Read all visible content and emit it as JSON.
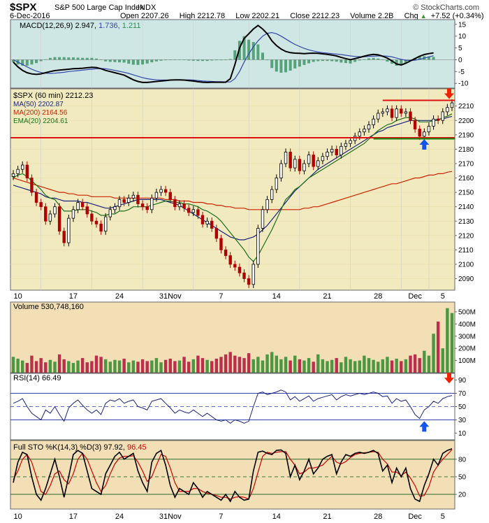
{
  "header": {
    "symbol": "$SPX",
    "name": "S&P 500 Large Cap Index",
    "exchange": "INDX",
    "watermark": "© StockCharts.com",
    "date": "6-Dec-2016",
    "open_label": "Open",
    "open": "2207.26",
    "high_label": "High",
    "high": "2212.78",
    "low_label": "Low",
    "low": "2202.21",
    "close_label": "Close",
    "close": "2212.23",
    "volume_label": "Volume",
    "volume": "2.2B",
    "chg_label": "Chg",
    "chg": "+7.52 (+0.34%)",
    "chg_icon": "up-triangle-icon"
  },
  "colors": {
    "macd_bg": "#cfe7e4",
    "price_bg": "#f2eabf",
    "volume_bg": "#f2dfb6",
    "rsi_bg": "#ffffff",
    "sto_bg": "#f2dfb6",
    "ma50": "#1a237e",
    "ma200": "#cc2200",
    "ema20": "#1b6e1b",
    "resistance": "#dd1111",
    "support": "#118811",
    "up_arrow": "#1155ee",
    "down_arrow": "#ee2200"
  },
  "chart_data": [
    {
      "type": "line",
      "panel": "macd",
      "legend": "MACD(12,26,9) 2.947, 1.736, 1.211",
      "legend_parts": {
        "label": "MACD(12,26,9)",
        "macd": "2.947",
        "signal": "1.736",
        "hist": "1.211"
      },
      "y_ticks": [
        "15",
        "10",
        "5",
        "0",
        "-5",
        "-10"
      ],
      "ylim": [
        -12,
        17
      ],
      "macd": [
        -1,
        -3,
        -4.5,
        -5.5,
        -6,
        -6.2,
        -6,
        -5.5,
        -5,
        -4.6,
        -4.4,
        -4.2,
        -4,
        -3.8,
        -3.7,
        -3.6,
        -3.4,
        -3.2,
        -3.3,
        -3.8,
        -4.5,
        -5,
        -5.5,
        -6,
        -6.5,
        -7.5,
        -8.5,
        -9.2,
        -9.6,
        -9.6,
        -9.4,
        -9.2,
        -9,
        -8.8,
        -8.6,
        -8.5,
        -8.5,
        -8.6,
        -8.8,
        -9,
        -9.3,
        -9.5,
        -9.6,
        -9.5,
        -9.5,
        -9.5,
        -9.5,
        -8,
        -2,
        5,
        9,
        11,
        13,
        14.5,
        13,
        11,
        8,
        6,
        4.5,
        3.5,
        3,
        2.8,
        2.7,
        2.6,
        2.7,
        2.8,
        2.7,
        2.5,
        2.3,
        2,
        1.6,
        1,
        0.5,
        0,
        0.5,
        1,
        1.5,
        2,
        2.3,
        2.1,
        1.5,
        0.7,
        -0.5,
        -1.8,
        -2.2,
        -1.5,
        -0.5,
        0.5,
        1.5,
        2.2,
        2.6,
        2.9
      ],
      "signal": [
        0,
        -1,
        -2,
        -3,
        -4,
        -4.8,
        -5.4,
        -5.7,
        -5.8,
        -5.7,
        -5.5,
        -5.3,
        -5,
        -4.8,
        -4.6,
        -4.4,
        -4.2,
        -4,
        -3.8,
        -3.7,
        -3.8,
        -4.1,
        -4.5,
        -4.9,
        -5.3,
        -5.8,
        -6.4,
        -7,
        -7.6,
        -8,
        -8.3,
        -8.5,
        -8.6,
        -8.6,
        -8.6,
        -8.5,
        -8.5,
        -8.5,
        -8.5,
        -8.6,
        -8.8,
        -9,
        -9.1,
        -9.2,
        -9.3,
        -9.3,
        -9.4,
        -9.4,
        -8,
        -5,
        -1,
        2.5,
        5.5,
        8,
        10,
        11.2,
        11.5,
        11,
        10,
        8.8,
        7.6,
        6.5,
        5.6,
        4.8,
        4.2,
        3.7,
        3.3,
        3,
        2.8,
        2.6,
        2.4,
        2.2,
        1.9,
        1.6,
        1.4,
        1.3,
        1.3,
        1.4,
        1.5,
        1.6,
        1.6,
        1.5,
        1.2,
        0.7,
        0.2,
        -0.2,
        -0.3,
        -0.2,
        0.2,
        0.7,
        1.2,
        1.7
      ],
      "histogram": [
        -1,
        -2,
        -2.5,
        -2.5,
        -2,
        -1.4,
        -0.6,
        0.2,
        0.8,
        1.1,
        1.1,
        1.1,
        1,
        1,
        0.9,
        0.8,
        0.8,
        0.8,
        0.5,
        -0.1,
        -0.7,
        -0.9,
        -1,
        -1.1,
        -1.2,
        -1.7,
        -2.1,
        -2.2,
        -2,
        -1.6,
        -1.1,
        -0.7,
        -0.4,
        -0.2,
        0,
        0,
        0,
        -0.1,
        -0.3,
        -0.4,
        -0.5,
        -0.5,
        -0.5,
        -0.3,
        -0.2,
        -0.2,
        -0.1,
        0.3,
        4,
        8,
        10,
        8.5,
        7.5,
        6.5,
        3,
        -0.2,
        -3.5,
        -5,
        -5.5,
        -5.3,
        -4.6,
        -3.7,
        -2.9,
        -2.2,
        -1.5,
        -0.9,
        -0.6,
        -0.5,
        -0.5,
        -0.6,
        -0.8,
        -1.2,
        -1.4,
        -1.6,
        -0.9,
        -0.3,
        0.2,
        0.6,
        0.8,
        0.5,
        -0.1,
        -0.8,
        -1.7,
        -2.5,
        -2.4,
        -1.3,
        -0.2,
        0.7,
        1.3,
        1.5,
        1.4,
        1.2
      ]
    },
    {
      "type": "candlestick",
      "panel": "price",
      "legend": [
        {
          "text": "$SPX (60 min) 2212.23",
          "color": "#000000"
        },
        {
          "text": "MA(50) 2202.87",
          "color": "#1a237e"
        },
        {
          "text": "MA(200) 2164.56",
          "color": "#cc2200"
        },
        {
          "text": "EMA(20) 2204.61",
          "color": "#1b6e1b"
        }
      ],
      "y_ticks": [
        "2210",
        "2200",
        "2190",
        "2180",
        "2170",
        "2160",
        "2150",
        "2140",
        "2130",
        "2120",
        "2110",
        "2100",
        "2090"
      ],
      "ylim": [
        2082,
        2222
      ],
      "close": [
        2163,
        2166,
        2169,
        2160,
        2150,
        2143,
        2140,
        2130,
        2135,
        2140,
        2123,
        2115,
        2132,
        2138,
        2143,
        2140,
        2135,
        2130,
        2128,
        2123,
        2133,
        2138,
        2140,
        2145,
        2143,
        2146,
        2148,
        2142,
        2140,
        2138,
        2146,
        2150,
        2152,
        2150,
        2145,
        2140,
        2142,
        2139,
        2136,
        2138,
        2134,
        2128,
        2130,
        2125,
        2118,
        2110,
        2106,
        2100,
        2098,
        2094,
        2090,
        2086,
        2100,
        2125,
        2138,
        2145,
        2152,
        2160,
        2170,
        2178,
        2167,
        2173,
        2165,
        2170,
        2176,
        2168,
        2172,
        2175,
        2178,
        2180,
        2176,
        2182,
        2184,
        2186,
        2189,
        2192,
        2194,
        2197,
        2201,
        2205,
        2206,
        2208,
        2202,
        2208,
        2205,
        2206,
        2200,
        2194,
        2189,
        2192,
        2196,
        2201,
        2200,
        2206,
        2209,
        2212.23
      ],
      "ma50": [
        2155,
        2154,
        2153,
        2152,
        2151,
        2150,
        2149,
        2147,
        2146,
        2146,
        2145,
        2144,
        2144,
        2144,
        2144,
        2143,
        2143,
        2142,
        2141,
        2140,
        2139,
        2139,
        2140,
        2141,
        2142,
        2143,
        2144,
        2145,
        2145,
        2145,
        2145,
        2145,
        2145,
        2144,
        2143,
        2142,
        2141,
        2139,
        2137,
        2135,
        2133,
        2131,
        2129,
        2127,
        2125,
        2123,
        2121,
        2119,
        2118,
        2117,
        2117,
        2118,
        2119,
        2121,
        2124,
        2127,
        2131,
        2135,
        2139,
        2143,
        2147,
        2151,
        2154,
        2157,
        2160,
        2163,
        2166,
        2168,
        2170,
        2172,
        2174,
        2176,
        2178,
        2180,
        2182,
        2184,
        2186,
        2188,
        2190,
        2192,
        2193,
        2195,
        2196,
        2197,
        2198,
        2199,
        2200,
        2200,
        2200,
        2200,
        2200,
        2200,
        2201,
        2201,
        2202,
        2202.87
      ],
      "ma200": [
        2160,
        2159,
        2158,
        2157,
        2156,
        2155,
        2154,
        2153,
        2152,
        2151,
        2150,
        2150,
        2149,
        2149,
        2148,
        2148,
        2148,
        2147,
        2147,
        2147,
        2147,
        2147,
        2146,
        2146,
        2146,
        2146,
        2146,
        2146,
        2146,
        2146,
        2146,
        2146,
        2146,
        2145,
        2145,
        2145,
        2144,
        2144,
        2144,
        2143,
        2143,
        2143,
        2142,
        2142,
        2141,
        2141,
        2140,
        2140,
        2139,
        2139,
        2139,
        2138,
        2138,
        2138,
        2138,
        2138,
        2138,
        2138,
        2138,
        2138,
        2138,
        2138,
        2138,
        2139,
        2139,
        2140,
        2140,
        2141,
        2142,
        2143,
        2144,
        2145,
        2146,
        2147,
        2148,
        2149,
        2150,
        2151,
        2152,
        2153,
        2154,
        2155,
        2156,
        2156,
        2157,
        2158,
        2159,
        2160,
        2160,
        2161,
        2162,
        2162,
        2163,
        2163,
        2164,
        2164.56
      ],
      "ema20": [
        2160,
        2162,
        2163,
        2161,
        2158,
        2155,
        2152,
        2148,
        2146,
        2145,
        2141,
        2137,
        2137,
        2137,
        2138,
        2138,
        2138,
        2137,
        2136,
        2134,
        2134,
        2135,
        2135,
        2137,
        2137,
        2138,
        2140,
        2140,
        2140,
        2140,
        2141,
        2142,
        2143,
        2144,
        2144,
        2143,
        2143,
        2142,
        2142,
        2141,
        2140,
        2138,
        2137,
        2135,
        2133,
        2130,
        2126,
        2122,
        2118,
        2114,
        2110,
        2105,
        2102,
        2106,
        2112,
        2118,
        2124,
        2131,
        2138,
        2145,
        2148,
        2152,
        2154,
        2157,
        2160,
        2162,
        2164,
        2166,
        2168,
        2170,
        2172,
        2174,
        2176,
        2178,
        2180,
        2182,
        2184,
        2187,
        2190,
        2193,
        2195,
        2197,
        2198,
        2200,
        2201,
        2202,
        2202,
        2201,
        2199,
        2199,
        2199,
        2200,
        2200,
        2202,
        2203,
        2204.61
      ],
      "support_level": 2188,
      "resistance_level": 2214,
      "annotations": [
        {
          "type": "arrow-up",
          "color": "blue",
          "near": "2186 late Nov"
        },
        {
          "type": "arrow-down",
          "color": "red",
          "near": "2214 at last bar"
        }
      ],
      "x_tick_labels": [
        "10",
        "17",
        "24",
        "31Nov",
        "7",
        "14",
        "21",
        "28",
        "Dec",
        "5"
      ]
    },
    {
      "type": "bar",
      "panel": "volume",
      "legend": "Volume 530,748,160",
      "y_ticks": [
        "500M",
        "400M",
        "300M",
        "200M",
        "100M"
      ],
      "ylim": [
        0,
        580000000
      ],
      "values": [
        130,
        115,
        100,
        80,
        140,
        95,
        120,
        85,
        105,
        90,
        150,
        110,
        95,
        80,
        100,
        120,
        85,
        95,
        140,
        130,
        110,
        90,
        105,
        100,
        115,
        85,
        100,
        90,
        110,
        95,
        100,
        120,
        85,
        105,
        115,
        95,
        100,
        130,
        90,
        110,
        140,
        120,
        105,
        95,
        115,
        130,
        150,
        170,
        140,
        130,
        120,
        160,
        110,
        130,
        100,
        150,
        170,
        140,
        110,
        130,
        100,
        140,
        110,
        100,
        120,
        90,
        150,
        110,
        95,
        105,
        120,
        85,
        130,
        110,
        95,
        100,
        140,
        120,
        105,
        90,
        110,
        130,
        100,
        115,
        95,
        110,
        140,
        150,
        120,
        180,
        140,
        320,
        420,
        200,
        530,
        490
      ]
    },
    {
      "type": "line",
      "panel": "rsi",
      "legend": "RSI(14) 66.49",
      "y_ticks": [
        "90",
        "70",
        "50",
        "30",
        "10"
      ],
      "ylim": [
        0,
        100
      ],
      "levels": [
        70,
        50,
        30
      ],
      "values": [
        55,
        58,
        62,
        50,
        40,
        35,
        30,
        45,
        40,
        50,
        38,
        28,
        48,
        55,
        60,
        52,
        45,
        40,
        45,
        38,
        55,
        60,
        58,
        62,
        55,
        58,
        60,
        50,
        48,
        45,
        58,
        60,
        62,
        55,
        48,
        40,
        45,
        42,
        40,
        45,
        40,
        35,
        40,
        35,
        30,
        28,
        30,
        25,
        30,
        28,
        25,
        28,
        50,
        70,
        72,
        68,
        70,
        72,
        75,
        72,
        60,
        65,
        58,
        62,
        66,
        58,
        62,
        64,
        66,
        68,
        60,
        65,
        68,
        66,
        68,
        70,
        68,
        70,
        72,
        70,
        65,
        66,
        55,
        62,
        58,
        60,
        50,
        38,
        32,
        45,
        50,
        58,
        55,
        62,
        65,
        66.49
      ]
    },
    {
      "type": "line",
      "panel": "stochastic",
      "legend": "Full STO %K(14,3) %D(3) 97.92, 96.45",
      "legend_parts": {
        "label": "Full STO %K(14,3) %D(3)",
        "k": "97.92",
        "d": "96.45"
      },
      "y_ticks": [
        "80",
        "50",
        "20"
      ],
      "ylim": [
        0,
        100
      ],
      "levels": [
        80,
        50,
        20
      ],
      "k": [
        40,
        75,
        92,
        88,
        50,
        20,
        10,
        30,
        55,
        80,
        50,
        15,
        50,
        88,
        95,
        90,
        60,
        30,
        25,
        20,
        55,
        70,
        85,
        92,
        80,
        85,
        90,
        60,
        40,
        25,
        75,
        90,
        95,
        70,
        35,
        15,
        30,
        25,
        20,
        40,
        30,
        15,
        25,
        20,
        15,
        10,
        20,
        8,
        25,
        15,
        10,
        12,
        60,
        92,
        94,
        90,
        88,
        95,
        96,
        90,
        50,
        70,
        45,
        60,
        80,
        55,
        65,
        80,
        85,
        88,
        55,
        75,
        88,
        85,
        90,
        92,
        90,
        92,
        95,
        90,
        60,
        70,
        40,
        65,
        50,
        65,
        30,
        12,
        8,
        35,
        55,
        80,
        70,
        90,
        95,
        97.92
      ],
      "d": [
        45,
        60,
        80,
        88,
        75,
        50,
        25,
        20,
        35,
        55,
        60,
        45,
        38,
        55,
        80,
        90,
        80,
        60,
        40,
        25,
        35,
        55,
        72,
        82,
        85,
        85,
        86,
        75,
        60,
        42,
        50,
        70,
        88,
        85,
        65,
        40,
        25,
        25,
        25,
        30,
        30,
        25,
        22,
        20,
        18,
        15,
        15,
        12,
        15,
        16,
        15,
        12,
        30,
        58,
        85,
        92,
        90,
        92,
        93,
        93,
        80,
        70,
        55,
        58,
        65,
        65,
        67,
        70,
        78,
        85,
        75,
        72,
        76,
        83,
        88,
        90,
        91,
        92,
        93,
        92,
        80,
        72,
        58,
        58,
        52,
        58,
        48,
        35,
        17,
        18,
        33,
        58,
        70,
        80,
        88,
        96.45
      ]
    }
  ]
}
